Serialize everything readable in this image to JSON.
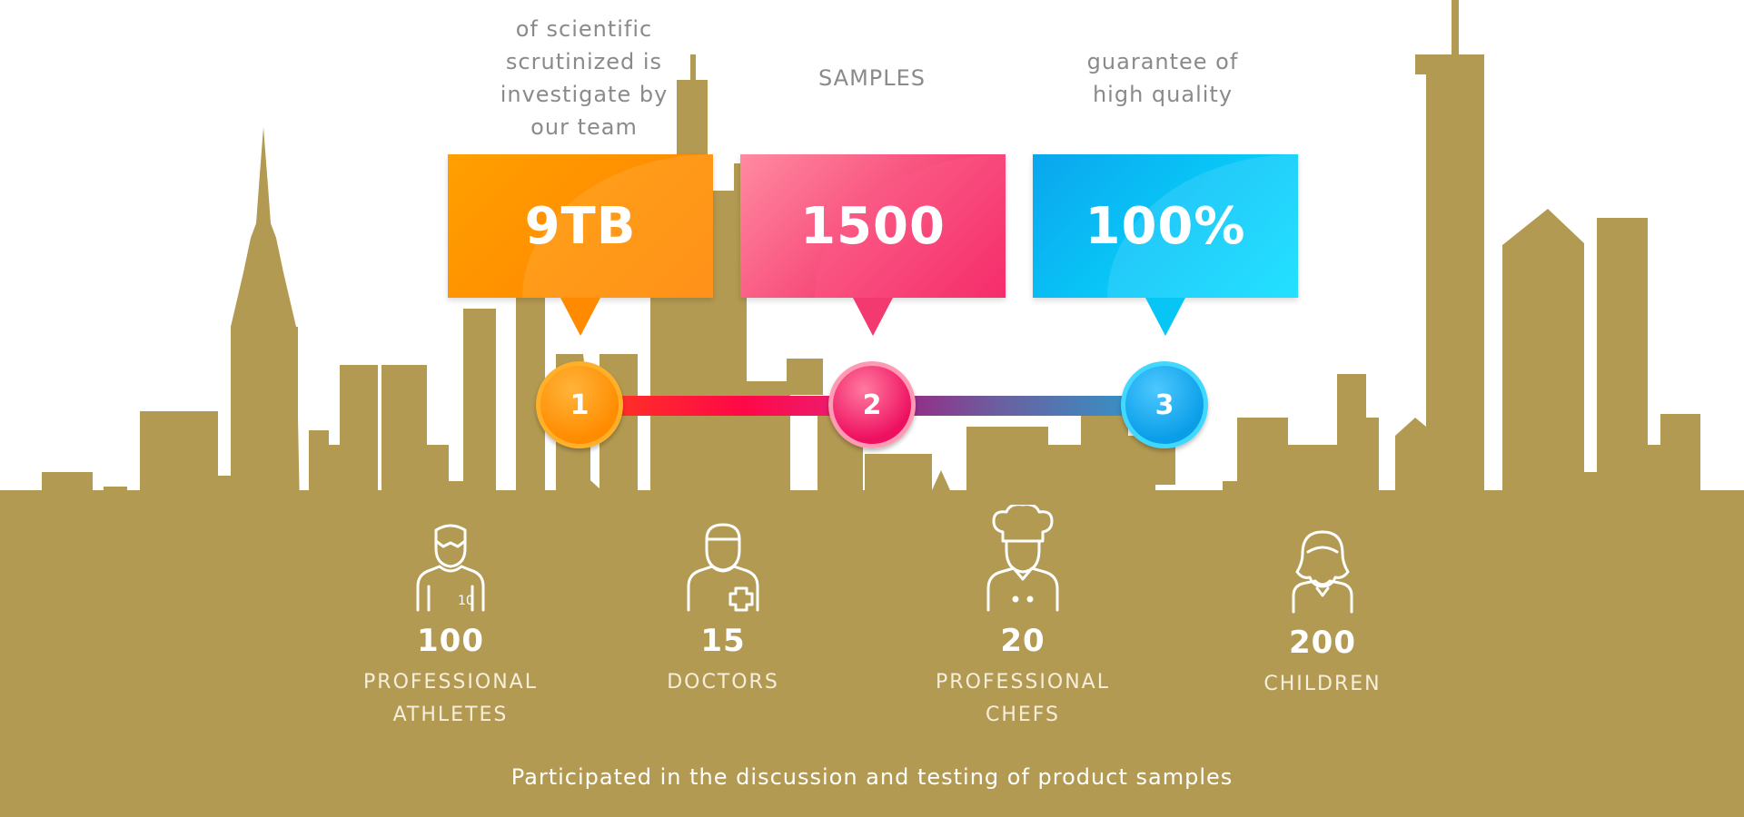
{
  "colors": {
    "skyline": "#b39a52",
    "orange": "#ff8c00",
    "pink": "#f0145a",
    "blue": "#0aa6ee",
    "caption_text": "#8a8a8a"
  },
  "stats": [
    {
      "caption": "of scientific\nscrutinized is\ninvestigate by\nour team",
      "value": "9TB"
    },
    {
      "caption": "SAMPLES",
      "value": "1500"
    },
    {
      "caption": "guarantee of\nhigh quality",
      "value": "100%"
    }
  ],
  "steps": [
    "1",
    "2",
    "3"
  ],
  "participants": [
    {
      "icon": "athlete-icon",
      "count": "100",
      "label": "PROFESSIONAL\nATHLETES"
    },
    {
      "icon": "doctor-icon",
      "count": "15",
      "label": "DOCTORS"
    },
    {
      "icon": "chef-icon",
      "count": "20",
      "label": "PROFESSIONAL\nCHEFS"
    },
    {
      "icon": "child-icon",
      "count": "200",
      "label": "CHILDREN"
    }
  ],
  "footer": "Participated in the discussion and testing of product samples"
}
